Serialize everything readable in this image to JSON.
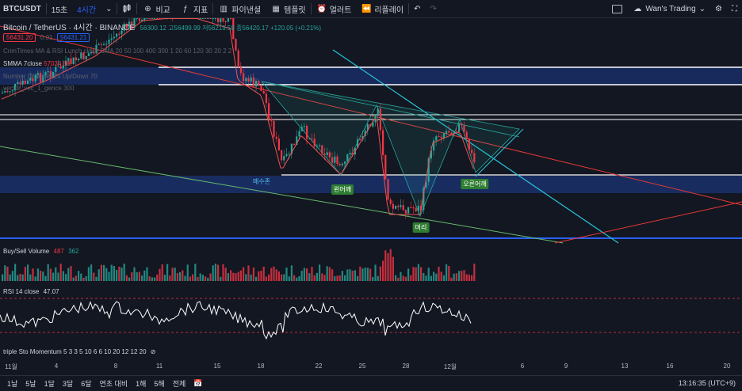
{
  "toolbar": {
    "symbol": "BTCUSDT",
    "interval_sec": "15초",
    "interval_active": "4시간",
    "compare": "비교",
    "indicators": "지표",
    "pine": "파이낸셜",
    "templates": "템플릿",
    "alert": "얼러트",
    "replay": "리플레이",
    "layout_name": "Wan's Trading"
  },
  "legend": {
    "title": "Bitcoin / TetherUS · 4시간 · BINANCE",
    "ohlc": "56300.12 고56499.99 저56219.58 종56420.17 +120.05 (+0.21%)",
    "bid": "56431.20",
    "spread": "0.01",
    "ask": "56431.21",
    "ind1": "CrimTimes MA & RSI Lunch close SMA 20 50 100 400 300 1 20 60 120 30 20 2 2",
    "ind2": "SMMA 7close",
    "ind2_val": "57034.88",
    "ind3": "Number Of Rows 24 Up/Down 70",
    "ind4": "vector_vec_1_gence 300"
  },
  "annotations": {
    "support": "매수존",
    "left_shoulder": "왼어깨",
    "head": "머리",
    "right_shoulder": "오른어깨"
  },
  "volume_pane": {
    "label": "Buy/Sell Volume",
    "sell": "487",
    "buy": "362"
  },
  "rsi_pane": {
    "label": "RSI 14 close",
    "value": "47.07"
  },
  "stoch_pane": {
    "label": "triple Sto Momentum 5 3 3 5 10 6 6 10 20 12 12 20"
  },
  "time_axis": [
    "11월",
    "4",
    "8",
    "11",
    "15",
    "18",
    "22",
    "25",
    "28",
    "12월",
    "6",
    "9",
    "13",
    "16",
    "20"
  ],
  "bottom_bar": {
    "ranges": [
      "1날",
      "5날",
      "1달",
      "3달",
      "6달",
      "연초 대비",
      "1해",
      "5해",
      "전체"
    ],
    "clock": "13:16:35 (UTC+9)"
  },
  "colors": {
    "background": "#131722",
    "up": "#26a69a",
    "down": "#f23645",
    "zone": "#1e3a8a",
    "accent": "#2962ff"
  }
}
